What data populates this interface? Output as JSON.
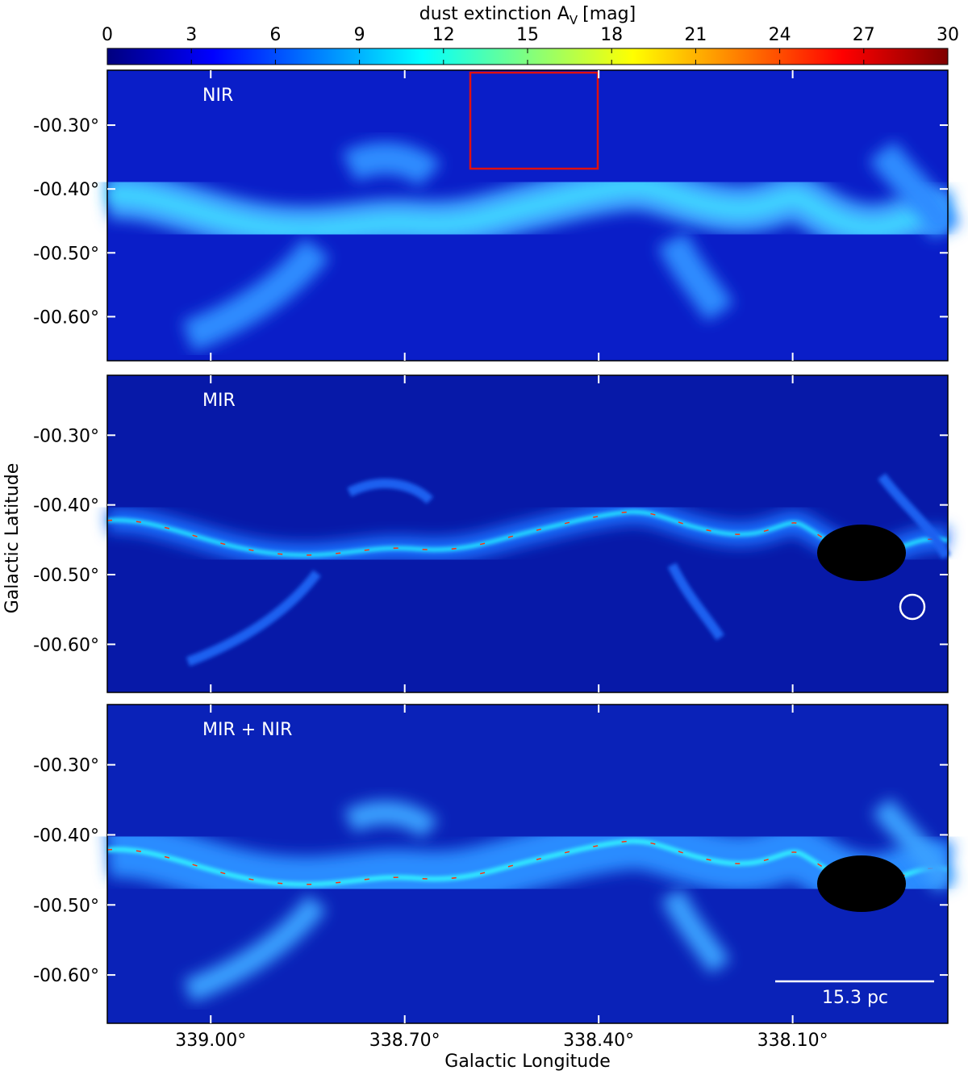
{
  "chart_data": {
    "type": "image-map",
    "colorbar": {
      "title": "dust extinction A",
      "title_subscript": "V",
      "title_suffix": "[mag]",
      "lim": [
        0,
        30
      ],
      "ticks": [
        0,
        3,
        6,
        9,
        12,
        15,
        18,
        21,
        24,
        27,
        30
      ],
      "colormap": "jet"
    },
    "panels": [
      {
        "label": "NIR"
      },
      {
        "label": "MIR"
      },
      {
        "label": "MIR + NIR"
      }
    ],
    "xlabel": "Galactic Longitude",
    "ylabel": "Galactic Latitude",
    "xlim": [
      339.16,
      337.86
    ],
    "xticks": [
      {
        "value": 339.0,
        "label": "339.00°"
      },
      {
        "value": 338.7,
        "label": "338.70°"
      },
      {
        "value": 338.4,
        "label": "338.40°"
      },
      {
        "value": 338.1,
        "label": "338.10°"
      }
    ],
    "ylim": [
      -0.669,
      -0.214
    ],
    "yticks": [
      {
        "value": -0.3,
        "label": "-00.30°"
      },
      {
        "value": -0.4,
        "label": "-00.40°"
      },
      {
        "value": -0.5,
        "label": "-00.50°"
      },
      {
        "value": -0.6,
        "label": "-00.60°"
      }
    ],
    "scalebar": "15.3 pc"
  }
}
